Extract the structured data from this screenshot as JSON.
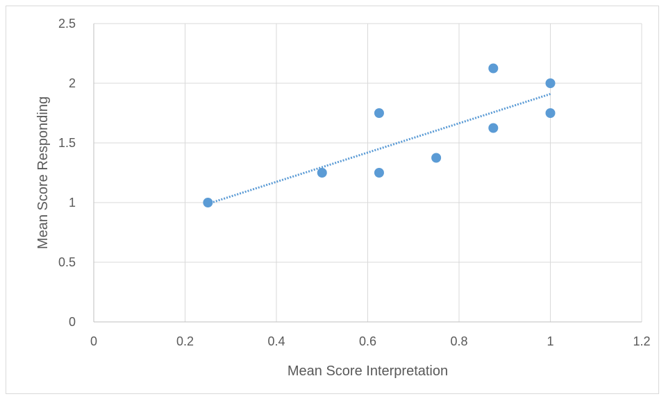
{
  "chart_data": {
    "type": "scatter",
    "title": "",
    "xlabel": "Mean Score Interpretation",
    "ylabel": "Mean Score Responding",
    "xlim": [
      0,
      1.2
    ],
    "ylim": [
      0,
      2.5
    ],
    "xticks": [
      0,
      0.2,
      0.4,
      0.6,
      0.8,
      1,
      1.2
    ],
    "yticks": [
      0,
      0.5,
      1,
      1.5,
      2,
      2.5
    ],
    "xtick_labels": [
      "0",
      "0.2",
      "0.4",
      "0.6",
      "0.8",
      "1",
      "1.2"
    ],
    "ytick_labels": [
      "0",
      "0.5",
      "1",
      "1.5",
      "2",
      "2.5"
    ],
    "grid": true,
    "legend": "none",
    "series": [
      {
        "x": [
          0.25,
          0.5,
          0.625,
          0.625,
          0.75,
          0.875,
          0.875,
          1,
          1
        ],
        "y": [
          1,
          1.25,
          1.75,
          1.25,
          1.375,
          2.125,
          1.625,
          2,
          1.75
        ],
        "color": "#5b9bd5"
      }
    ],
    "trendline": {
      "type": "linear",
      "style": "dotted",
      "color": "#5b9bd5",
      "x_range": [
        0.25,
        1
      ],
      "y_range": [
        0.99,
        1.91
      ]
    },
    "gridline_color": "#d9d9d9",
    "axis_color": "#bfbfbf"
  }
}
